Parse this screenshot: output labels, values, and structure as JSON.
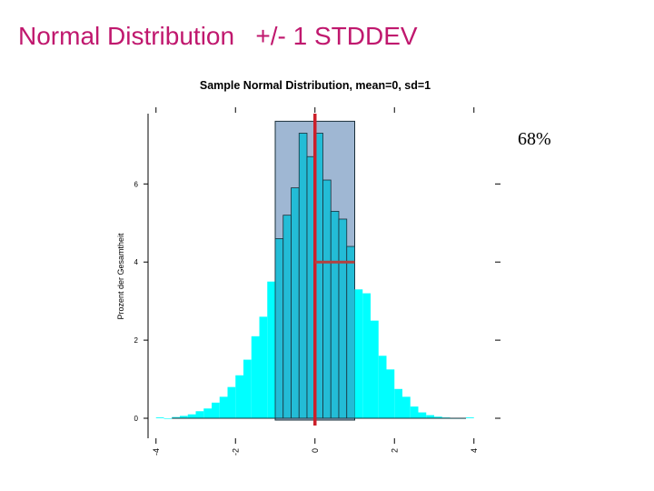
{
  "slide": {
    "title": "Normal Distribution   +/- 1 STDDEV",
    "percent_note": "68%"
  },
  "chart_data": {
    "type": "bar",
    "title": "Sample Normal Distribution, mean=0, sd=1",
    "xlabel": "",
    "ylabel": "Prozent der Gesamtheit",
    "xlim": [
      -4.2,
      4.6
    ],
    "ylim": [
      0,
      7.8
    ],
    "x_ticks": [
      "-4",
      "-2",
      "0",
      "2",
      "4"
    ],
    "x_tick_values": [
      -4,
      -2,
      0,
      2,
      4
    ],
    "y_ticks": [
      "0",
      "2",
      "4",
      "6"
    ],
    "y_tick_values": [
      0,
      2,
      4,
      6
    ],
    "bin_width": 0.2,
    "bins": [
      {
        "x0": -4.0,
        "value": 0.02
      },
      {
        "x0": -3.8,
        "value": 0.0
      },
      {
        "x0": -3.6,
        "value": 0.03
      },
      {
        "x0": -3.4,
        "value": 0.06
      },
      {
        "x0": -3.2,
        "value": 0.1
      },
      {
        "x0": -3.0,
        "value": 0.18
      },
      {
        "x0": -2.8,
        "value": 0.25
      },
      {
        "x0": -2.6,
        "value": 0.4
      },
      {
        "x0": -2.4,
        "value": 0.55
      },
      {
        "x0": -2.2,
        "value": 0.8
      },
      {
        "x0": -2.0,
        "value": 1.1
      },
      {
        "x0": -1.8,
        "value": 1.5
      },
      {
        "x0": -1.6,
        "value": 2.1
      },
      {
        "x0": -1.4,
        "value": 2.6
      },
      {
        "x0": -1.2,
        "value": 3.5
      },
      {
        "x0": -1.0,
        "value": 4.6
      },
      {
        "x0": -0.8,
        "value": 5.2
      },
      {
        "x0": -0.6,
        "value": 5.9
      },
      {
        "x0": -0.4,
        "value": 7.3
      },
      {
        "x0": -0.2,
        "value": 6.7
      },
      {
        "x0": 0.0,
        "value": 7.3
      },
      {
        "x0": 0.2,
        "value": 6.1
      },
      {
        "x0": 0.4,
        "value": 5.3
      },
      {
        "x0": 0.6,
        "value": 5.1
      },
      {
        "x0": 0.8,
        "value": 4.4
      },
      {
        "x0": 1.0,
        "value": 3.3
      },
      {
        "x0": 1.2,
        "value": 3.2
      },
      {
        "x0": 1.4,
        "value": 2.5
      },
      {
        "x0": 1.6,
        "value": 1.6
      },
      {
        "x0": 1.8,
        "value": 1.25
      },
      {
        "x0": 2.0,
        "value": 0.75
      },
      {
        "x0": 2.2,
        "value": 0.55
      },
      {
        "x0": 2.4,
        "value": 0.3
      },
      {
        "x0": 2.6,
        "value": 0.15
      },
      {
        "x0": 2.8,
        "value": 0.08
      },
      {
        "x0": 3.0,
        "value": 0.04
      },
      {
        "x0": 3.2,
        "value": 0.02
      },
      {
        "x0": 3.4,
        "value": 0.0
      },
      {
        "x0": 3.6,
        "value": 0.0
      },
      {
        "x0": 3.8,
        "value": 0.02
      }
    ],
    "highlight_range": [
      -1.0,
      1.0
    ],
    "mean_line_x": 0,
    "sd_segment": {
      "x_from": 0,
      "x_to": 1.0,
      "y": 4.0
    },
    "colors": {
      "bar_fill": "#00ffff",
      "bar_fill_highlight": "#23bcd6",
      "bar_stroke": "#1a2f3a",
      "highlight_fill": "#7f9fc4",
      "mean_line": "#cc1f2a",
      "sd_line": "#b5403f",
      "axis": "#000000",
      "title_color": "#c0186e"
    },
    "grid": false,
    "legend": "none"
  }
}
